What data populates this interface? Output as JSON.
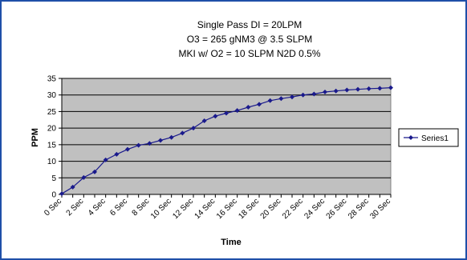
{
  "chart_data": {
    "type": "line",
    "title_lines": [
      "Single Pass DI = 20LPM",
      "O3 = 265 gNM3 @ 3.5 SLPM",
      "MKI w/ O2 = 10 SLPM N2D 0.5%"
    ],
    "xlabel": "Time",
    "ylabel": "PPM",
    "ylim": [
      0,
      35
    ],
    "y_ticks": [
      0,
      5,
      10,
      15,
      20,
      25,
      30,
      35
    ],
    "x_tick_labels": [
      "0 Sec",
      "2 Sec",
      "4 Sec",
      "6 Sec",
      "8 Sec",
      "10 Sec",
      "12 Sec",
      "14 Sec",
      "16 Sec",
      "18 Sec",
      "20 Sec",
      "22 Sec",
      "24 Sec",
      "26 Sec",
      "28 Sec",
      "30 Sec"
    ],
    "x": [
      "0 Sec",
      "1 Sec",
      "2 Sec",
      "3 Sec",
      "4 Sec",
      "5 Sec",
      "6 Sec",
      "7 Sec",
      "8 Sec",
      "9 Sec",
      "10 Sec",
      "11 Sec",
      "12 Sec",
      "13 Sec",
      "14 Sec",
      "15 Sec",
      "16 Sec",
      "17 Sec",
      "18 Sec",
      "19 Sec",
      "20 Sec",
      "21 Sec",
      "22 Sec",
      "23 Sec",
      "24 Sec",
      "25 Sec",
      "26 Sec",
      "27 Sec",
      "28 Sec",
      "29 Sec",
      "30 Sec"
    ],
    "series": [
      {
        "name": "Series1",
        "color": "#1a1a8c",
        "values": [
          0.2,
          2.2,
          5.1,
          6.8,
          10.4,
          12.1,
          13.6,
          14.8,
          15.4,
          16.3,
          17.2,
          18.5,
          20.0,
          22.2,
          23.6,
          24.5,
          25.3,
          26.3,
          27.2,
          28.3,
          28.9,
          29.4,
          30.0,
          30.3,
          30.9,
          31.2,
          31.5,
          31.7,
          31.9,
          32.0,
          32.2
        ]
      }
    ],
    "grid": "horizontal",
    "plot_background": "#c0c0c0",
    "legend_position": "right"
  }
}
